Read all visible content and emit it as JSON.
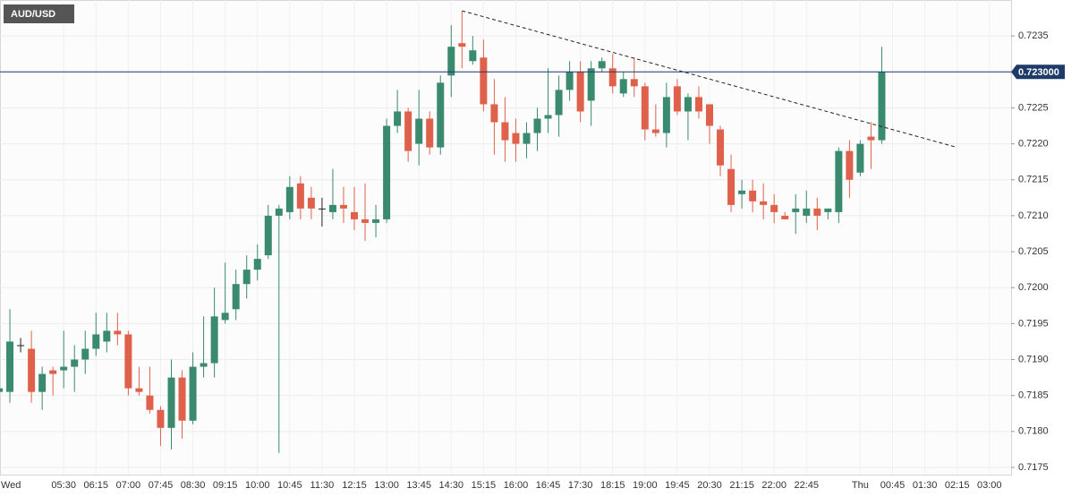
{
  "chart_data": {
    "type": "candlestick",
    "title": "AUD/USD",
    "categories": [
      "Wed",
      null,
      null,
      null,
      null,
      null,
      "05:30",
      null,
      null,
      "06:15",
      null,
      null,
      "07:00",
      null,
      null,
      "07:45",
      null,
      null,
      "08:30",
      null,
      null,
      "09:15",
      null,
      null,
      "10:00",
      null,
      null,
      "10:45",
      null,
      null,
      "11:30",
      null,
      null,
      "12:15",
      null,
      null,
      "13:00",
      null,
      null,
      "13:45",
      null,
      null,
      "14:30",
      null,
      null,
      "15:15",
      null,
      null,
      "16:00",
      null,
      null,
      "16:45",
      null,
      null,
      "17:30",
      null,
      null,
      "18:15",
      null,
      null,
      "19:00",
      null,
      null,
      "19:45",
      null,
      null,
      "20:30",
      null,
      null,
      "21:15",
      null,
      null,
      "22:00",
      null,
      null,
      "22:45",
      null,
      null,
      null,
      null,
      "Thu",
      null,
      null,
      "00:45",
      null,
      null,
      "01:30",
      null,
      null,
      "02:15",
      null,
      null,
      "03:00"
    ],
    "open": [
      0.71855,
      0.71855,
      0.7192,
      0.71915,
      0.71855,
      0.71885,
      0.71885,
      0.7189,
      0.719,
      0.71915,
      0.71925,
      0.7194,
      0.71935,
      0.7186,
      0.7185,
      0.7183,
      0.71805,
      0.71875,
      0.71815,
      0.7189,
      0.71895,
      0.71955,
      0.7197,
      0.72005,
      0.72025,
      0.72045,
      0.721,
      0.72105,
      0.72145,
      0.72125,
      0.7211,
      0.72105,
      0.72115,
      0.72105,
      0.72095,
      0.7209,
      0.72095,
      0.72225,
      0.72245,
      0.722,
      0.72235,
      0.72195,
      0.72295,
      0.7234,
      0.72315,
      0.7232,
      0.72255,
      0.7223,
      0.72215,
      0.722,
      0.72215,
      0.72235,
      0.7224,
      0.72275,
      0.723,
      0.7226,
      0.72305,
      0.72305,
      0.7227,
      0.7229,
      0.7228,
      0.7222,
      0.72215,
      0.7228,
      0.72245,
      0.72265,
      0.72255,
      0.7222,
      0.72165,
      0.7213,
      0.72135,
      0.7212,
      0.72115,
      0.721,
      0.72105,
      0.721,
      0.7211,
      0.72105,
      0.72105,
      0.7219,
      0.7216,
      0.7221,
      0.72205,
      null,
      null,
      null,
      null,
      null,
      null,
      null,
      null,
      null,
      null
    ],
    "high": [
      0.7188,
      0.7197,
      0.7193,
      0.7194,
      0.7189,
      0.7189,
      0.7194,
      0.7192,
      0.7194,
      0.71965,
      0.71965,
      0.71965,
      0.7194,
      0.7189,
      0.7189,
      0.71835,
      0.719,
      0.71885,
      0.7191,
      0.7196,
      0.72,
      0.72035,
      0.72025,
      0.72045,
      0.7206,
      0.72115,
      0.72115,
      0.72155,
      0.72155,
      0.7214,
      0.72125,
      0.72165,
      0.7214,
      0.7214,
      0.72145,
      0.72115,
      0.72235,
      0.72275,
      0.7225,
      0.72275,
      0.72245,
      0.72295,
      0.72365,
      0.72385,
      0.7235,
      0.72345,
      0.7229,
      0.72265,
      0.72235,
      0.7223,
      0.7225,
      0.72305,
      0.72295,
      0.72315,
      0.72315,
      0.72315,
      0.7232,
      0.72325,
      0.723,
      0.7232,
      0.72285,
      0.72255,
      0.72285,
      0.7229,
      0.7227,
      0.7228,
      0.72255,
      0.72225,
      0.72185,
      0.7215,
      0.7215,
      0.72145,
      0.7213,
      0.72105,
      0.7213,
      0.72135,
      0.72125,
      0.7211,
      0.72195,
      0.72205,
      0.72205,
      0.7223,
      0.72335,
      null,
      null,
      null,
      null,
      null,
      null,
      null,
      null,
      null,
      null
    ],
    "low": [
      0.71825,
      0.7184,
      0.7191,
      0.7184,
      0.7183,
      0.7185,
      0.7186,
      0.71855,
      0.7188,
      0.71905,
      0.7191,
      0.7192,
      0.7185,
      0.7185,
      0.71825,
      0.7178,
      0.71775,
      0.7179,
      0.7181,
      0.71875,
      0.71875,
      0.7195,
      0.71955,
      0.71985,
      0.7201,
      0.7204,
      0.7177,
      0.72095,
      0.72095,
      0.72095,
      0.72085,
      0.72095,
      0.7209,
      0.7208,
      0.72065,
      0.7207,
      0.7209,
      0.72215,
      0.72175,
      0.7217,
      0.72185,
      0.72185,
      0.72265,
      0.72305,
      0.7231,
      0.72245,
      0.72185,
      0.72175,
      0.72175,
      0.7218,
      0.7219,
      0.72215,
      0.7221,
      0.7226,
      0.7223,
      0.72225,
      0.723,
      0.7227,
      0.72265,
      0.72265,
      0.72205,
      0.7221,
      0.72195,
      0.7224,
      0.72205,
      0.72235,
      0.722,
      0.72155,
      0.72105,
      0.7211,
      0.72105,
      0.72095,
      0.7209,
      0.72095,
      0.72075,
      0.7209,
      0.7208,
      0.72095,
      0.7209,
      0.72125,
      0.72155,
      0.72165,
      0.722,
      null,
      null,
      null,
      null,
      null,
      null,
      null,
      null,
      null,
      null
    ],
    "close": [
      0.7186,
      0.71925,
      0.7192,
      0.71855,
      0.7188,
      0.7188,
      0.7189,
      0.719,
      0.71915,
      0.71935,
      0.7194,
      0.71935,
      0.7186,
      0.71855,
      0.7183,
      0.71805,
      0.71875,
      0.71815,
      0.7189,
      0.71895,
      0.7196,
      0.71965,
      0.72005,
      0.72025,
      0.7204,
      0.721,
      0.7211,
      0.7214,
      0.7211,
      0.7211,
      0.7211,
      0.72115,
      0.7211,
      0.72095,
      0.7209,
      0.72095,
      0.72225,
      0.72245,
      0.7219,
      0.72235,
      0.72195,
      0.72285,
      0.72335,
      0.72335,
      0.7233,
      0.72255,
      0.7223,
      0.72205,
      0.722,
      0.72215,
      0.72235,
      0.7224,
      0.72275,
      0.723,
      0.72245,
      0.72305,
      0.72315,
      0.7228,
      0.7229,
      0.7228,
      0.7222,
      0.72215,
      0.72265,
      0.72245,
      0.72265,
      0.72245,
      0.72225,
      0.7217,
      0.72115,
      0.72135,
      0.7212,
      0.72115,
      0.72105,
      0.72095,
      0.7211,
      0.7211,
      0.721,
      0.7211,
      0.7219,
      0.7215,
      0.722,
      0.72205,
      0.723,
      null,
      null,
      null,
      null,
      null,
      null,
      null,
      null,
      null,
      null
    ],
    "up_color": "#3a8a6f",
    "down_color": "#e0614b",
    "ylim": [
      0.7174,
      0.724
    ],
    "yticks": [
      0.7175,
      {
        "value": 0.718,
        "label": "0.7180"
      },
      0.7185,
      {
        "value": 0.719,
        "label": "0.7190"
      },
      0.7195,
      {
        "value": 0.72,
        "label": "0.7200"
      },
      0.7205,
      {
        "value": 0.721,
        "label": "0.7210"
      },
      0.7215,
      {
        "value": 0.722,
        "label": "0.7220"
      },
      0.7225,
      {
        "value": 0.723,
        "label": "0.7230"
      },
      0.7235
    ],
    "grid": true,
    "price_line": {
      "value": 0.723,
      "label": "0.723000",
      "color": "#1e3a68"
    },
    "trendline": {
      "start": [
        43,
        0.72385
      ],
      "end": [
        89,
        0.72195
      ]
    }
  }
}
